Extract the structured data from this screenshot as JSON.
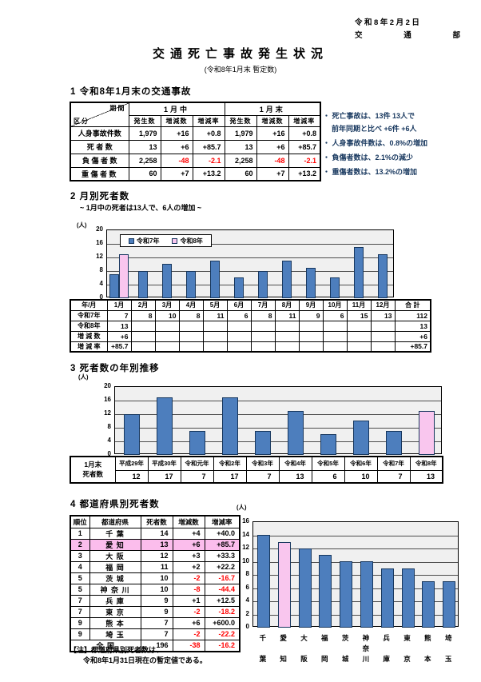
{
  "header": {
    "date": "令和8年2月2日",
    "department": "交通部",
    "title": "交通死亡事故発生状況",
    "subtitle": "(令和8年1月末 暫定数)"
  },
  "colors": {
    "bar_blue": "#4D7EBD",
    "bar_pink": "#F9C6EE",
    "highlight_pink": "#FBBDEC",
    "negative_red": "#FF0000",
    "note_blue": "#17375E",
    "plot_bg": "#F0F0F0"
  },
  "section1": {
    "heading": "1 令和8年1月末の交通事故",
    "table": {
      "corner": {
        "top_right": "期間",
        "bottom_left": "区分"
      },
      "period_headers": [
        "1月中",
        "1月末"
      ],
      "measure_headers": [
        "発生数",
        "増減数",
        "増減率"
      ],
      "rows": [
        {
          "label": "人身事故件数",
          "sub": false,
          "values": [
            "1,979",
            "+16",
            "+0.8",
            "1,979",
            "+16",
            "+0.8"
          ]
        },
        {
          "label": "死  者  数",
          "sub": false,
          "values": [
            "13",
            "+6",
            "+85.7",
            "13",
            "+6",
            "+85.7"
          ]
        },
        {
          "label": "負 傷 者 数",
          "sub": false,
          "values": [
            "2,258",
            "-48",
            "-2.1",
            "2,258",
            "-48",
            "-2.1"
          ]
        },
        {
          "label": "重 傷 者 数",
          "sub": true,
          "values": [
            "60",
            "+7",
            "+13.2",
            "60",
            "+7",
            "+13.2"
          ]
        }
      ]
    },
    "notes": [
      {
        "bullet": true,
        "text": "死亡事故は、13件 13人で"
      },
      {
        "bullet": false,
        "text": "前年同期と比べ +6件 +6人"
      },
      {
        "bullet": true,
        "text": "人身事故件数は、0.8%の増加"
      },
      {
        "bullet": true,
        "text": "負傷者数は、2.1%の減少"
      },
      {
        "bullet": true,
        "text": "重傷者数は、13.2%の増加"
      }
    ]
  },
  "section2": {
    "heading": "2 月別死者数",
    "subheading": "~ 1月中の死者は13人で、6人の増加 ~",
    "table": {
      "col_header_label": "年/月",
      "col_headers": [
        "1月",
        "2月",
        "3月",
        "4月",
        "5月",
        "6月",
        "7月",
        "8月",
        "9月",
        "10月",
        "11月",
        "12月",
        "合 計"
      ],
      "rows": [
        {
          "label": "令和7年",
          "values": [
            "7",
            "8",
            "10",
            "8",
            "11",
            "6",
            "8",
            "11",
            "9",
            "6",
            "15",
            "13",
            "112"
          ]
        },
        {
          "label": "令和8年",
          "values": [
            "13",
            "",
            "",
            "",
            "",
            "",
            "",
            "",
            "",
            "",
            "",
            "",
            "13"
          ]
        },
        {
          "label": "増 減 数",
          "values": [
            "+6",
            "",
            "",
            "",
            "",
            "",
            "",
            "",
            "",
            "",
            "",
            "",
            "+6"
          ]
        },
        {
          "label": "増 減 率",
          "values": [
            "+85.7",
            "",
            "",
            "",
            "",
            "",
            "",
            "",
            "",
            "",
            "",
            "",
            "+85.7"
          ]
        }
      ]
    }
  },
  "section3": {
    "heading": "3 死者数の年別推移",
    "table": {
      "row_label_line1": "1月末",
      "row_label_line2": "死者数",
      "years": [
        "平成29年",
        "平成30年",
        "令和元年",
        "令和2年",
        "令和3年",
        "令和4年",
        "令和5年",
        "令和6年",
        "令和7年",
        "令和8年"
      ],
      "values": [
        "12",
        "17",
        "7",
        "17",
        "7",
        "13",
        "6",
        "10",
        "7",
        "13"
      ]
    }
  },
  "section4": {
    "heading": "4 都道府県別死者数",
    "table": {
      "headers": [
        "順位",
        "都道府県",
        "死者数",
        "増減数",
        "増減率"
      ],
      "rows": [
        {
          "rank": "1",
          "pref": "千  葉",
          "deaths": "14",
          "diff": "+4",
          "rate": "+40.0",
          "highlight": false
        },
        {
          "rank": "2",
          "pref": "愛  知",
          "deaths": "13",
          "diff": "+6",
          "rate": "+85.7",
          "highlight": true
        },
        {
          "rank": "3",
          "pref": "大  阪",
          "deaths": "12",
          "diff": "+3",
          "rate": "+33.3",
          "highlight": false
        },
        {
          "rank": "4",
          "pref": "福  岡",
          "deaths": "11",
          "diff": "+2",
          "rate": "+22.2",
          "highlight": false
        },
        {
          "rank": "5",
          "pref": "茨  城",
          "deaths": "10",
          "diff": "-2",
          "rate": "-16.7",
          "highlight": false
        },
        {
          "rank": "5",
          "pref": "神 奈 川",
          "deaths": "10",
          "diff": "-8",
          "rate": "-44.4",
          "highlight": false
        },
        {
          "rank": "7",
          "pref": "兵  庫",
          "deaths": "9",
          "diff": "+1",
          "rate": "+12.5",
          "highlight": false
        },
        {
          "rank": "7",
          "pref": "東  京",
          "deaths": "9",
          "diff": "-2",
          "rate": "-18.2",
          "highlight": false
        },
        {
          "rank": "9",
          "pref": "熊  本",
          "deaths": "7",
          "diff": "+6",
          "rate": "+600.0",
          "highlight": false
        },
        {
          "rank": "9",
          "pref": "埼  玉",
          "deaths": "7",
          "diff": "-2",
          "rate": "-22.2",
          "highlight": false
        }
      ],
      "total": {
        "label": "全  国",
        "deaths": "196",
        "diff": "-38",
        "rate": "-16.2"
      }
    },
    "notes": [
      "【注】都道府県別死者数は、",
      "令和8年1月31日現在の暫定値である。"
    ]
  },
  "chart_data": [
    {
      "id": "monthly-deaths",
      "type": "bar",
      "title": "月別死者数",
      "categories": [
        "1月",
        "2月",
        "3月",
        "4月",
        "5月",
        "6月",
        "7月",
        "8月",
        "9月",
        "10月",
        "11月",
        "12月"
      ],
      "series": [
        {
          "name": "令和7年",
          "color_key": "blue",
          "values": [
            7,
            8,
            10,
            8,
            11,
            6,
            8,
            11,
            9,
            6,
            15,
            13
          ]
        },
        {
          "name": "令和8年",
          "color_key": "pink",
          "values": [
            13,
            null,
            null,
            null,
            null,
            null,
            null,
            null,
            null,
            null,
            null,
            null
          ]
        }
      ],
      "ylabel": "(人)",
      "ylim": [
        0,
        20
      ],
      "ytick_step": 4,
      "grid": true,
      "legend_position": "top-left"
    },
    {
      "id": "yearly-deaths",
      "type": "bar",
      "title": "死者数の年別推移",
      "categories": [
        "平成29年",
        "平成30年",
        "令和元年",
        "令和2年",
        "令和3年",
        "令和4年",
        "令和5年",
        "令和6年",
        "令和7年",
        "令和8年"
      ],
      "values": [
        12,
        17,
        7,
        17,
        7,
        13,
        6,
        10,
        7,
        13
      ],
      "highlight_index": 9,
      "ylabel": "(人)",
      "ylim": [
        0,
        20
      ],
      "ytick_step": 4,
      "grid": true
    },
    {
      "id": "prefecture-deaths",
      "type": "bar",
      "title": "都道府県別死者数",
      "categories": [
        "千葉",
        "愛知",
        "大阪",
        "福岡",
        "茨城",
        "神奈川",
        "兵庫",
        "東京",
        "熊本",
        "埼玉"
      ],
      "values": [
        14,
        13,
        12,
        11,
        10,
        10,
        9,
        9,
        7,
        7
      ],
      "highlight_index": 1,
      "ylabel": "(人)",
      "ylim": [
        0,
        16
      ],
      "ytick_step": 2,
      "grid": true
    }
  ]
}
